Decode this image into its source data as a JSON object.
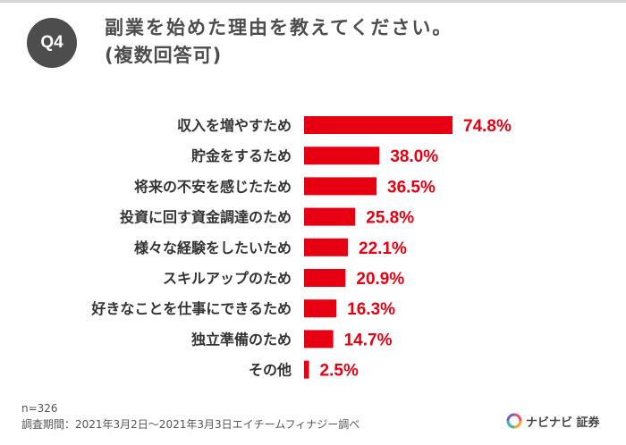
{
  "header": {
    "badge": "Q4",
    "title_line1": "副業を始めた理由を教えてください。",
    "title_line2": "(複数回答可)"
  },
  "chart_data": {
    "type": "bar",
    "orientation": "horizontal",
    "categories": [
      "収入を増やすため",
      "貯金をするため",
      "将来の不安を感じたため",
      "投資に回す資金調達のため",
      "様々な経験をしたいため",
      "スキルアップのため",
      "好きなことを仕事にできるため",
      "独立準備のため",
      "その他"
    ],
    "values": [
      74.8,
      38.0,
      36.5,
      25.8,
      22.1,
      20.9,
      16.3,
      14.7,
      2.5
    ],
    "value_labels": [
      "74.8%",
      "38.0%",
      "36.5%",
      "25.8%",
      "22.1%",
      "20.9%",
      "16.3%",
      "14.7%",
      "2.5%"
    ],
    "unit": "%",
    "bar_color": "#e60012",
    "label_color": "#e60012"
  },
  "footer": {
    "sample": "n=326",
    "source": "調査期間：2021年3月2日～2021年3月3日エイチームフィナジー調べ",
    "logo_text": "ナビナビ 証券",
    "logo_icon": "navinavi-logo-icon"
  }
}
